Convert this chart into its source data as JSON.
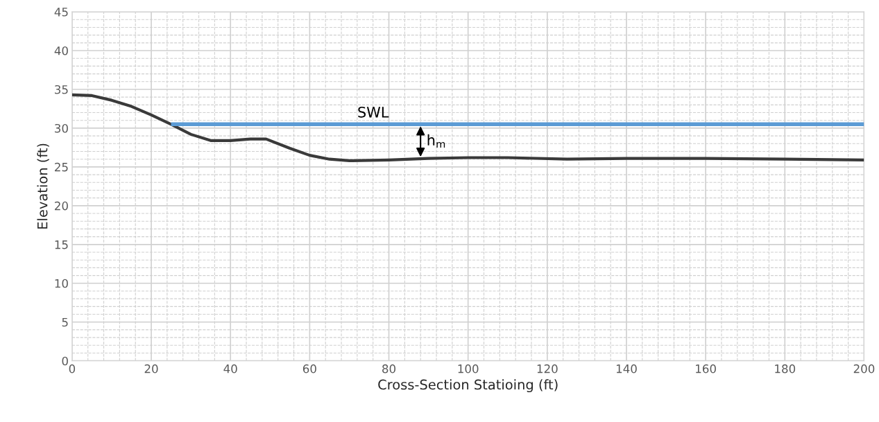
{
  "chart_data": {
    "type": "line",
    "xlabel": "Cross-Section Statioing (ft)",
    "ylabel": "Elevation (ft)",
    "series": [
      {
        "color": "#3a3a3a",
        "x": [
          0,
          5,
          10,
          15,
          20,
          25,
          30,
          35,
          40,
          45,
          49,
          55,
          60,
          65,
          70,
          80,
          90,
          100,
          110,
          125,
          140,
          160,
          180,
          200
        ],
        "values": [
          34.3,
          34.2,
          33.6,
          32.8,
          31.7,
          30.5,
          29.2,
          28.4,
          28.4,
          28.6,
          28.6,
          27.4,
          26.5,
          26.0,
          25.8,
          25.9,
          26.1,
          26.2,
          26.2,
          26.0,
          26.1,
          26.1,
          26.0,
          25.9
        ]
      },
      {
        "color": "#5b9bd5",
        "x": [
          25,
          200
        ],
        "values": [
          30.5,
          30.5
        ]
      }
    ],
    "annotations": [
      "SWL",
      "h$_{m}$"
    ],
    "xlim": [
      0,
      200
    ],
    "xticks": [
      0,
      20,
      40,
      60,
      80,
      100,
      120,
      140,
      160,
      180,
      200
    ],
    "ylim": [
      0,
      45
    ],
    "yticks": [
      0,
      5,
      10,
      15,
      20,
      25,
      30,
      35,
      40,
      45
    ],
    "grid": true,
    "legend": false,
    "marker": "none",
    "line_style": "solid"
  }
}
